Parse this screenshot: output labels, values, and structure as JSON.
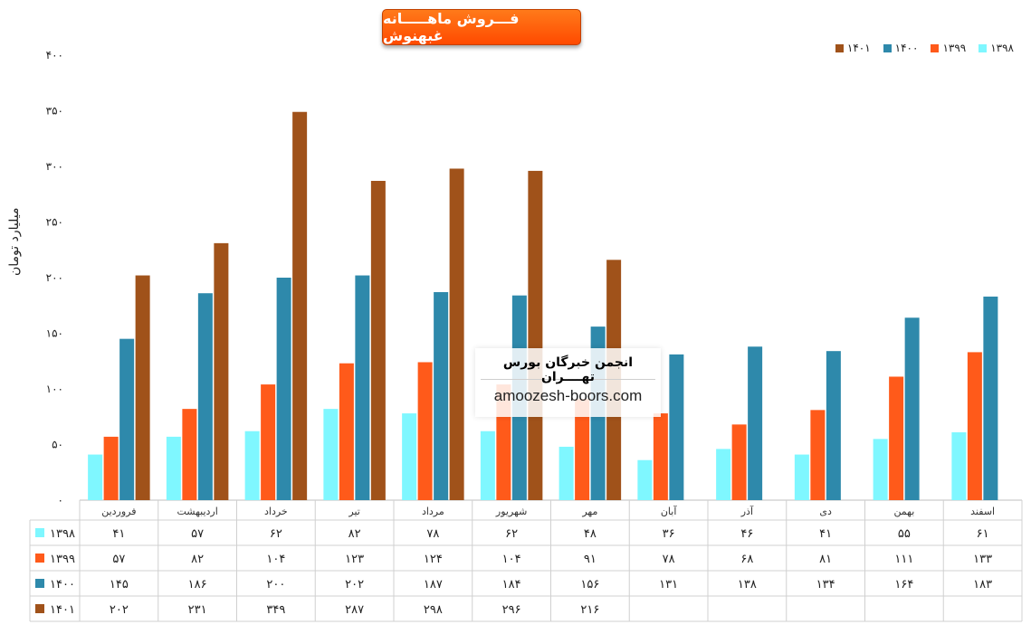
{
  "chart_data": {
    "type": "bar",
    "title": "فـــروش ماهـــــانه غبهنوش",
    "ylabel": "میلیارد تومان",
    "ylim": [
      0,
      400
    ],
    "yticks": [
      "۰",
      "۵۰",
      "۱۰۰",
      "۱۵۰",
      "۲۰۰",
      "۲۵۰",
      "۳۰۰",
      "۳۵۰",
      "۴۰۰"
    ],
    "grid": false,
    "legend_position": "top-right",
    "categories": [
      "فروردین",
      "اردیبهشت",
      "خرداد",
      "تیر",
      "مرداد",
      "شهریور",
      "مهر",
      "آبان",
      "آذر",
      "دی",
      "بهمن",
      "اسفند"
    ],
    "series": [
      {
        "name": "۱۳۹۸",
        "color": "#7ff7ff",
        "values": [
          41,
          57,
          62,
          82,
          78,
          62,
          48,
          36,
          46,
          41,
          55,
          61
        ],
        "labels": [
          "۴۱",
          "۵۷",
          "۶۲",
          "۸۲",
          "۷۸",
          "۶۲",
          "۴۸",
          "۳۶",
          "۴۶",
          "۴۱",
          "۵۵",
          "۶۱"
        ]
      },
      {
        "name": "۱۳۹۹",
        "color": "#ff5a1a",
        "values": [
          57,
          82,
          104,
          123,
          124,
          104,
          91,
          78,
          68,
          81,
          111,
          133
        ],
        "labels": [
          "۵۷",
          "۸۲",
          "۱۰۴",
          "۱۲۳",
          "۱۲۴",
          "۱۰۴",
          "۹۱",
          "۷۸",
          "۶۸",
          "۸۱",
          "۱۱۱",
          "۱۳۳"
        ]
      },
      {
        "name": "۱۴۰۰",
        "color": "#2e89ab",
        "values": [
          145,
          186,
          200,
          202,
          187,
          184,
          156,
          131,
          138,
          134,
          164,
          183
        ],
        "labels": [
          "۱۴۵",
          "۱۸۶",
          "۲۰۰",
          "۲۰۲",
          "۱۸۷",
          "۱۸۴",
          "۱۵۶",
          "۱۳۱",
          "۱۳۸",
          "۱۳۴",
          "۱۶۴",
          "۱۸۳"
        ]
      },
      {
        "name": "۱۴۰۱",
        "color": "#a0521a",
        "values": [
          202,
          231,
          349,
          287,
          298,
          296,
          216,
          null,
          null,
          null,
          null,
          null
        ],
        "labels": [
          "۲۰۲",
          "۲۳۱",
          "۳۴۹",
          "۲۸۷",
          "۲۹۸",
          "۲۹۶",
          "۲۱۶",
          "",
          "",
          "",
          "",
          ""
        ]
      }
    ],
    "watermark": {
      "line1": "انجمن خبرگان بورس تهــــران",
      "line2": "amoozesh-boors.com"
    }
  }
}
